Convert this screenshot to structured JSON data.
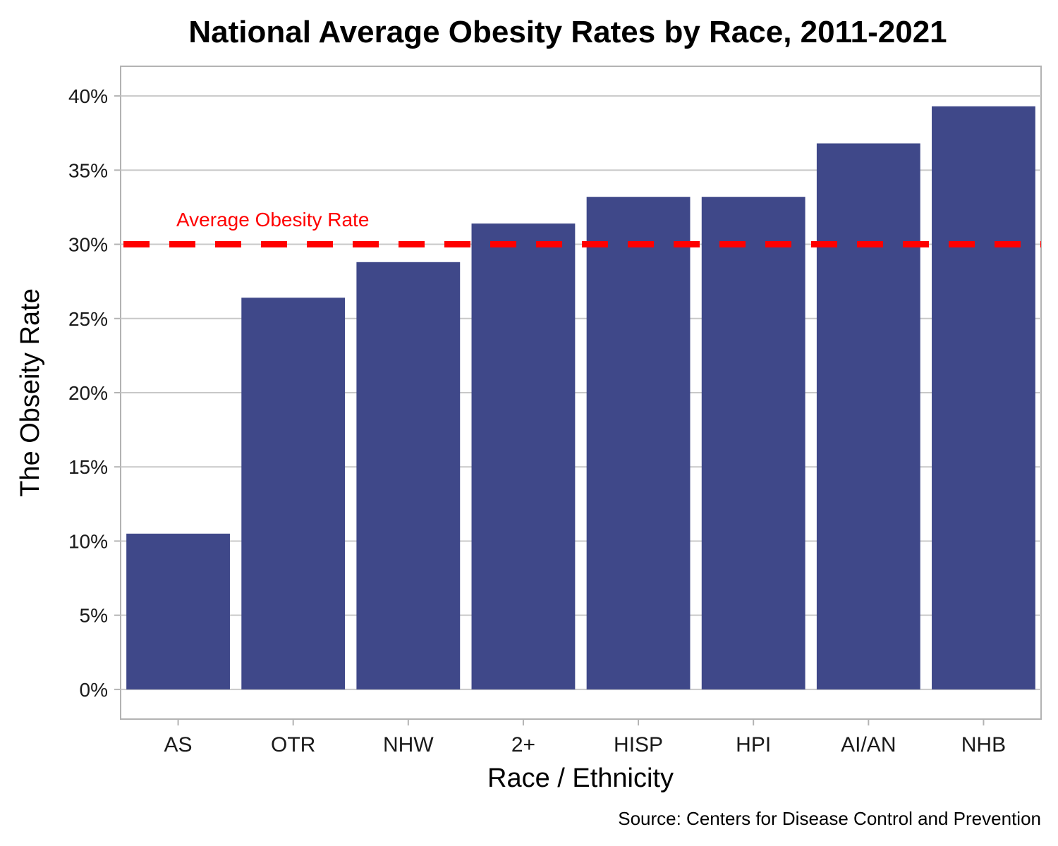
{
  "chart_data": {
    "type": "bar",
    "title": "National Average Obesity Rates by Race, 2011-2021",
    "xlabel": "Race / Ethnicity",
    "ylabel": "The Obseity Rate",
    "caption": "Source: Centers for Disease Control and Prevention",
    "categories": [
      "AS",
      "OTR",
      "NHW",
      "2+",
      "HISP",
      "HPI",
      "AI/AN",
      "NHB"
    ],
    "values": [
      10.5,
      26.4,
      28.8,
      31.4,
      33.2,
      33.2,
      36.8,
      39.3
    ],
    "ylim": [
      -2,
      42
    ],
    "yticks": [
      0,
      5,
      10,
      15,
      20,
      25,
      30,
      35,
      40
    ],
    "ytick_labels": [
      "0%",
      "5%",
      "10%",
      "15%",
      "20%",
      "25%",
      "30%",
      "35%",
      "40%"
    ],
    "grid": true,
    "bar_color": "#3f4889",
    "reference_line": {
      "value": 30,
      "label": "Average Obesity Rate",
      "color": "#ff0000",
      "style": "dashed"
    }
  }
}
